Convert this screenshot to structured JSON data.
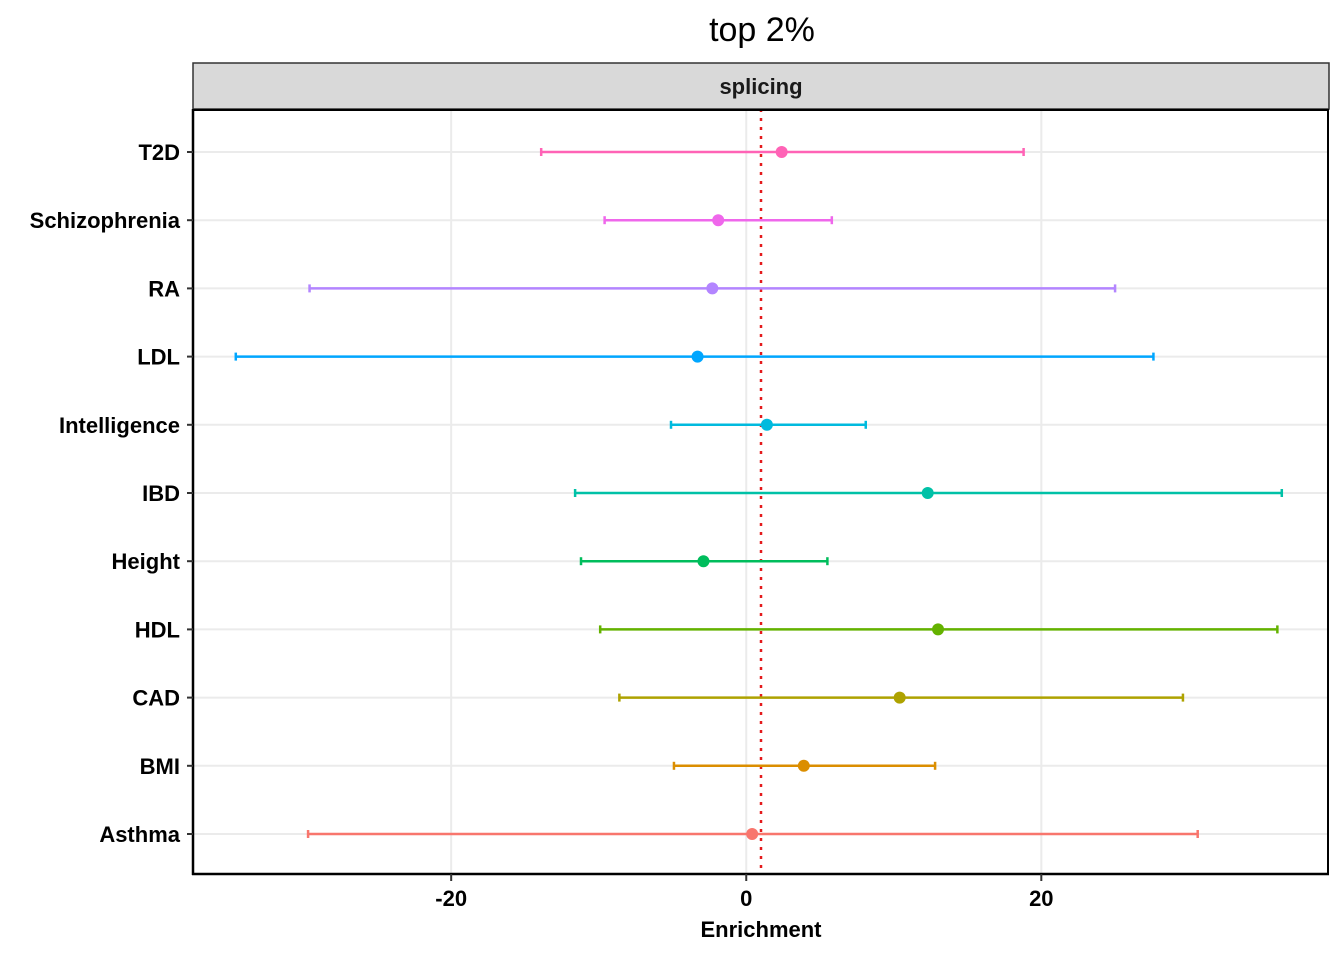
{
  "chart_data": {
    "type": "errorbar",
    "title": "top 2%",
    "facet": "splicing",
    "xlabel": "Enrichment",
    "ylabel": "",
    "xlim": [
      -37.5,
      39.5
    ],
    "xticks": [
      -20,
      0,
      20
    ],
    "reference_line": 1,
    "grid": true,
    "categories": [
      "Asthma",
      "BMI",
      "CAD",
      "HDL",
      "Height",
      "IBD",
      "Intelligence",
      "LDL",
      "RA",
      "Schizophrenia",
      "T2D"
    ],
    "estimates": [
      0.4,
      3.9,
      10.4,
      13.0,
      -2.9,
      12.3,
      1.4,
      -3.3,
      -2.3,
      -1.9,
      2.4
    ],
    "lower": [
      -29.7,
      -4.9,
      -8.6,
      -9.9,
      -11.2,
      -11.6,
      -5.1,
      -34.6,
      -29.6,
      -9.6,
      -13.9
    ],
    "upper": [
      30.6,
      12.8,
      29.6,
      36.0,
      5.5,
      36.3,
      8.1,
      27.6,
      25.0,
      5.8,
      18.8
    ],
    "colors": [
      "#F8766D",
      "#DB8E00",
      "#AEA200",
      "#64B200",
      "#00BD5C",
      "#00C1A7",
      "#00BADE",
      "#00A6FF",
      "#B385FF",
      "#EF67EB",
      "#FF63B6"
    ]
  }
}
